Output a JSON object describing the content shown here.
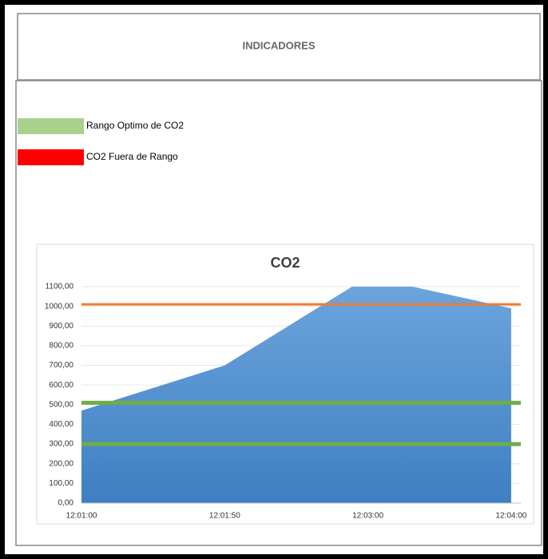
{
  "header": {
    "title": "INDICADORES"
  },
  "legend": [
    {
      "label": "Rango Optimo de CO2",
      "color": "#a9d18e"
    },
    {
      "label": "CO2 Fuera de Rango",
      "color": "#ff0000"
    }
  ],
  "chart_data": {
    "type": "area",
    "title": "CO2",
    "categories": [
      "12:01:00",
      "12:01:50",
      "12:03:00",
      "12:04:00"
    ],
    "values": [
      470,
      700,
      1150,
      990
    ],
    "color": "#5b9bd5",
    "ylim": [
      0,
      1100
    ],
    "yticks": [
      {
        "value": 0,
        "label": "0,00"
      },
      {
        "value": 100,
        "label": "100,00"
      },
      {
        "value": 200,
        "label": "200,00"
      },
      {
        "value": 300,
        "label": "300,00"
      },
      {
        "value": 400,
        "label": "400,00"
      },
      {
        "value": 500,
        "label": "500,00"
      },
      {
        "value": 600,
        "label": "600,00"
      },
      {
        "value": 700,
        "label": "700,00"
      },
      {
        "value": 800,
        "label": "800,00"
      },
      {
        "value": 900,
        "label": "900,00"
      },
      {
        "value": 1000,
        "label": "1000,00"
      },
      {
        "value": 1100,
        "label": "1100,00"
      }
    ],
    "grid": true,
    "reference_lines": [
      {
        "value": 1010,
        "color": "#ed7d31"
      },
      {
        "value": 510,
        "color": "#70ad47"
      },
      {
        "value": 300,
        "color": "#70ad47"
      }
    ]
  }
}
